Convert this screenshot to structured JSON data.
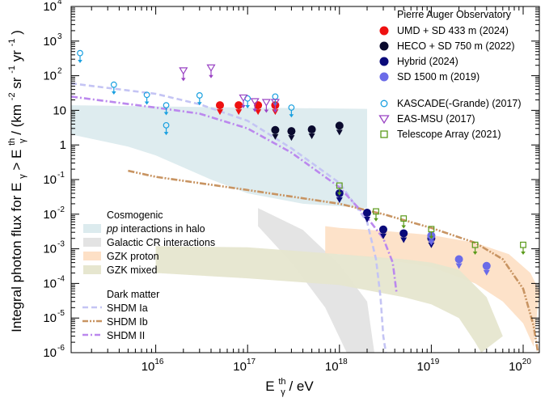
{
  "chart_data": {
    "type": "scatter",
    "scale": {
      "x": "log",
      "y": "log"
    },
    "xlim": [
      1200000000000000.0,
      1.5e+20
    ],
    "ylim": [
      1e-06,
      10000.0
    ],
    "x_title": {
      "base": "E",
      "sub": "γ",
      "sup": "th",
      "rest": " / eV"
    },
    "y_title": {
      "part1": "Integral photon flux for E",
      "sub": "γ",
      "part2": " > E",
      "sup_th": "th",
      "sub2": "γ",
      "part3": " / (km",
      "sup2": "-2",
      "part4": " sr",
      "sup3": "-1",
      "part5": " yr",
      "sup4": "-1",
      "part6": ")"
    },
    "x_ticks": [
      {
        "value": 1e+16,
        "base": "10",
        "exp": "16"
      },
      {
        "value": 1e+17,
        "base": "10",
        "exp": "17"
      },
      {
        "value": 1e+18,
        "base": "10",
        "exp": "18"
      },
      {
        "value": 1e+19,
        "base": "10",
        "exp": "19"
      },
      {
        "value": 1e+20,
        "base": "10",
        "exp": "20"
      }
    ],
    "y_ticks": [
      {
        "value": 10000.0,
        "base": "10",
        "exp": "4"
      },
      {
        "value": 1000.0,
        "base": "10",
        "exp": "3"
      },
      {
        "value": 100.0,
        "base": "10",
        "exp": "2"
      },
      {
        "value": 10,
        "base": "10",
        "exp": ""
      },
      {
        "value": 1,
        "base": "1",
        "exp": ""
      },
      {
        "value": 0.1,
        "base": "10",
        "exp": "-1"
      },
      {
        "value": 0.01,
        "base": "10",
        "exp": "-2"
      },
      {
        "value": 0.001,
        "base": "10",
        "exp": "-3"
      },
      {
        "value": 0.0001,
        "base": "10",
        "exp": "-4"
      },
      {
        "value": 1e-05,
        "base": "10",
        "exp": "-5"
      },
      {
        "value": 1e-06,
        "base": "10",
        "exp": "-6"
      }
    ],
    "legend_auger": {
      "header": "Pierre Auger Observatory",
      "placement": "top-right",
      "entries": [
        "UMD + SD 433 m (2024)",
        "HECO + SD 750 m (2022)",
        "Hybrid (2024)",
        "SD 1500 m (2019)"
      ]
    },
    "legend_other": {
      "placement": "top-right",
      "entries": [
        "KASCADE(-Grande) (2017)",
        "EAS-MSU (2017)",
        "Telescope Array (2021)"
      ]
    },
    "legend_cosmogenic": {
      "header": "Cosmogenic",
      "placement": "lower-left",
      "entries": [
        {
          "pre": "",
          "italic": "pp",
          "post": " interactions in halo"
        },
        {
          "pre": "Galactic CR interactions",
          "italic": "",
          "post": ""
        },
        {
          "pre": "GZK proton",
          "italic": "",
          "post": ""
        },
        {
          "pre": "GZK mixed",
          "italic": "",
          "post": ""
        }
      ]
    },
    "legend_dm": {
      "header": "Dark matter",
      "placement": "lower-left",
      "entries": [
        "SHDM Ia",
        "SHDM Ib",
        "SHDM II"
      ]
    },
    "colors": {
      "umd": "#ee1111",
      "heco": "#0a0a2e",
      "hybrid": "#0a0a7a",
      "sd1500": "#6b6be8",
      "kascade": "#1aa0e0",
      "easmsu": "#9a44c4",
      "ta": "#5a9a1a",
      "pp_halo": "#dcebee",
      "galactic": "#e3e3e3",
      "gzk_proton": "#fde0c6",
      "gzk_mixed": "#e6e6cf",
      "shdm_ia": "#c4c4f4",
      "shdm_ib": "#c89462",
      "shdm_ii": "#bb88ee"
    },
    "series": [
      {
        "name": "UMD + SD 433 m (2024)",
        "marker": "filled-circle",
        "color_key": "umd",
        "points": [
          [
            5e+16,
            14
          ],
          [
            8e+16,
            14
          ],
          [
            1.3e+17,
            14
          ],
          [
            2e+17,
            14
          ]
        ]
      },
      {
        "name": "HECO + SD 750 m (2022)",
        "marker": "filled-circle",
        "color_key": "heco",
        "points": [
          [
            2e+17,
            2.7
          ],
          [
            3e+17,
            2.5
          ],
          [
            5e+17,
            2.8
          ],
          [
            1e+18,
            3.6
          ]
        ]
      },
      {
        "name": "Hybrid (2024)",
        "marker": "filled-circle",
        "color_key": "hybrid",
        "points": [
          [
            1e+18,
            0.04
          ],
          [
            2e+18,
            0.011
          ],
          [
            3e+18,
            0.0036
          ],
          [
            5e+18,
            0.0028
          ],
          [
            1e+19,
            0.002
          ]
        ]
      },
      {
        "name": "SD 1500 m (2019)",
        "marker": "filled-circle",
        "color_key": "sd1500",
        "points": [
          [
            1e+19,
            0.0024
          ],
          [
            2e+19,
            0.0005
          ],
          [
            4e+19,
            0.00032
          ]
        ]
      },
      {
        "name": "KASCADE(-Grande) (2017)",
        "marker": "open-circle",
        "color_key": "kascade",
        "points": [
          [
            1500000000000000.0,
            450
          ],
          [
            3500000000000000.0,
            55
          ],
          [
            8000000000000000.0,
            28
          ],
          [
            1.3e+16,
            14
          ],
          [
            1.3e+16,
            3.7
          ],
          [
            3e+16,
            27
          ],
          [
            1e+17,
            22
          ],
          [
            2e+17,
            25
          ],
          [
            3e+17,
            12
          ]
        ]
      },
      {
        "name": "EAS-MSU (2017)",
        "marker": "open-triangle-down",
        "color_key": "easmsu",
        "points": [
          [
            2e+16,
            140
          ],
          [
            4e+16,
            170
          ],
          [
            9e+16,
            23
          ],
          [
            1.2e+17,
            18
          ],
          [
            1.6e+17,
            17
          ],
          [
            2e+17,
            17
          ]
        ]
      },
      {
        "name": "Telescope Array (2021)",
        "marker": "open-square",
        "color_key": "ta",
        "points": [
          [
            1e+18,
            0.067
          ],
          [
            2.5e+18,
            0.012
          ],
          [
            5e+18,
            0.0075
          ],
          [
            1e+19,
            0.0037
          ],
          [
            3e+19,
            0.0013
          ],
          [
            1e+20,
            0.0013
          ]
        ]
      }
    ],
    "bands": [
      {
        "name": "pp interactions in halo",
        "color_key": "pp_halo",
        "upper": [
          [
            1200000000000000.0,
            14
          ],
          [
            1e+16,
            13
          ],
          [
            1e+17,
            12
          ],
          [
            2e+18,
            11
          ]
        ],
        "lower": [
          [
            1200000000000000.0,
            2
          ],
          [
            5000000000000000.0,
            0.9
          ],
          [
            1e+16,
            0.5
          ],
          [
            4e+16,
            0.1
          ],
          [
            1e+17,
            0.04
          ],
          [
            4e+17,
            0.02
          ],
          [
            1e+18,
            0.017
          ],
          [
            2e+18,
            0.015
          ]
        ]
      },
      {
        "name": "Galactic CR interactions",
        "color_key": "galactic",
        "upper": [
          [
            1.3e+17,
            0.015
          ],
          [
            4e+17,
            0.0035
          ],
          [
            1e+18,
            0.00035
          ],
          [
            2e+18,
            3e-05
          ],
          [
            2.4e+18,
            1e-06
          ]
        ],
        "lower": [
          [
            1.3e+17,
            0.0045
          ],
          [
            3e+17,
            0.0004
          ],
          [
            7e+17,
            2e-05
          ],
          [
            1.2e+18,
            1e-06
          ]
        ]
      },
      {
        "name": "GZK proton",
        "color_key": "gzk_proton",
        "upper": [
          [
            7e+17,
            0.0045
          ],
          [
            1e+18,
            0.004
          ],
          [
            3e+18,
            0.0033
          ],
          [
            1e+19,
            0.0025
          ],
          [
            3e+19,
            0.0015
          ],
          [
            7e+19,
            0.0007
          ],
          [
            1.2e+20,
            0.0002
          ],
          [
            1.5e+20,
            6e-05
          ]
        ],
        "lower": [
          [
            7e+17,
            0.0007
          ],
          [
            1e+18,
            0.0007
          ],
          [
            3e+18,
            0.0005
          ],
          [
            1e+19,
            0.0003
          ],
          [
            3e+19,
            0.0001
          ],
          [
            6e+19,
            3e-05
          ],
          [
            1e+20,
            7e-06
          ],
          [
            1.3e+20,
            1.5e-06
          ]
        ]
      },
      {
        "name": "GZK mixed",
        "color_key": "gzk_mixed",
        "upper": [
          [
            1e+16,
            0.0012
          ],
          [
            1e+17,
            0.0011
          ],
          [
            1e+18,
            0.0007
          ],
          [
            5e+18,
            0.0005
          ],
          [
            1e+19,
            0.0004
          ],
          [
            2e+19,
            0.00025
          ],
          [
            4e+19,
            4e-05
          ],
          [
            6e+19,
            3e-06
          ]
        ],
        "lower": [
          [
            1e+16,
            0.0002
          ],
          [
            1e+17,
            0.00014
          ],
          [
            1e+18,
            9e-05
          ],
          [
            5e+18,
            4e-05
          ],
          [
            1e+19,
            2.5e-05
          ],
          [
            2e+19,
            1e-05
          ],
          [
            3e+19,
            2e-06
          ],
          [
            3.5e+19,
            1e-06
          ]
        ]
      }
    ],
    "curves": [
      {
        "name": "SHDM Ia",
        "style": "dashed",
        "color_key": "shdm_ia",
        "points": [
          [
            1200000000000000.0,
            60
          ],
          [
            1e+16,
            30
          ],
          [
            3e+16,
            15
          ],
          [
            1e+17,
            5
          ],
          [
            3e+17,
            0.8
          ],
          [
            1e+18,
            0.08
          ],
          [
            2e+18,
            0.006
          ],
          [
            2.5e+18,
            0.0005
          ],
          [
            2.8e+18,
            4e-05
          ],
          [
            3e+18,
            3e-06
          ],
          [
            3.2e+18,
            1e-06
          ]
        ]
      },
      {
        "name": "SHDM Ib",
        "style": "dash-dot-dot",
        "color_key": "shdm_ib",
        "points": [
          [
            5000000000000000.0,
            0.18
          ],
          [
            1e+16,
            0.12
          ],
          [
            1e+17,
            0.05
          ],
          [
            1e+18,
            0.02
          ],
          [
            3e+18,
            0.01
          ],
          [
            1e+19,
            0.004
          ],
          [
            3e+19,
            0.0015
          ],
          [
            6e+19,
            0.0005
          ],
          [
            1e+20,
            7e-05
          ],
          [
            1.3e+20,
            6e-06
          ],
          [
            1.45e+20,
            1e-06
          ]
        ]
      },
      {
        "name": "SHDM II",
        "style": "dash-dot",
        "color_key": "shdm_ii",
        "points": [
          [
            1200000000000000.0,
            25
          ],
          [
            1e+16,
            12
          ],
          [
            3e+16,
            8
          ],
          [
            1e+17,
            3
          ],
          [
            3e+17,
            0.6
          ],
          [
            1e+18,
            0.06
          ],
          [
            2e+18,
            0.008
          ],
          [
            3e+18,
            0.002
          ],
          [
            3.8e+18,
            0.0004
          ],
          [
            4.2e+18,
            5e-05
          ]
        ]
      }
    ]
  }
}
